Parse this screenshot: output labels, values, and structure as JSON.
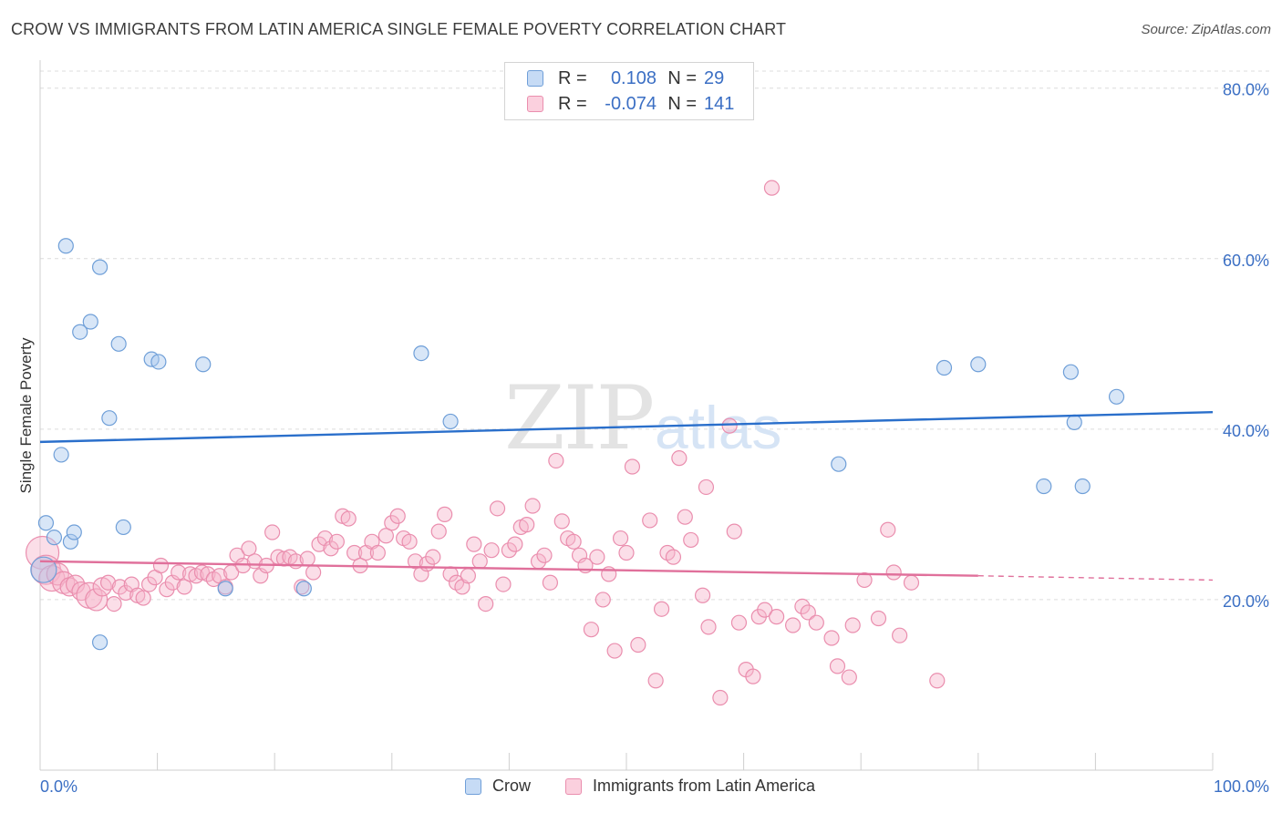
{
  "title": "CROW VS IMMIGRANTS FROM LATIN AMERICA SINGLE FEMALE POVERTY CORRELATION CHART",
  "source": "Source: ZipAtlas.com",
  "watermark": {
    "zip": "ZIP",
    "atlas": "atlas"
  },
  "legend": {
    "rows": [
      {
        "r_label": "R =",
        "r_value": "0.108",
        "n_label": "N =",
        "n_value": "29"
      },
      {
        "r_label": "R =",
        "r_value": "-0.074",
        "n_label": "N =",
        "n_value": "141"
      }
    ]
  },
  "bottom_legend": {
    "crow": "Crow",
    "immigrants": "Immigrants from Latin America"
  },
  "colors": {
    "crow_fill": "#a9c8ee",
    "crow_stroke": "#6f9fd8",
    "crow_line": "#2a6fcb",
    "imm_fill": "#f6b6cb",
    "imm_stroke": "#ea8eae",
    "imm_line": "#e0709b",
    "grid": "#dcdcdc",
    "axis_text": "#3b6fc4"
  },
  "chart_data": {
    "type": "scatter",
    "title": "CROW VS IMMIGRANTS FROM LATIN AMERICA SINGLE FEMALE POVERTY CORRELATION CHART",
    "xlabel": "",
    "ylabel": "Single Female Poverty",
    "xlim": [
      0,
      100
    ],
    "ylim": [
      0,
      82
    ],
    "x_tick_labels": [
      "0.0%",
      "100.0%"
    ],
    "y_ticks": [
      20,
      40,
      60,
      80
    ],
    "y_tick_labels": [
      "20.0%",
      "40.0%",
      "60.0%",
      "80.0%"
    ],
    "grid": true,
    "legend_position": "top-center",
    "series": [
      {
        "name": "Crow",
        "r": 0.108,
        "n": 29,
        "trend": {
          "x": [
            0,
            100
          ],
          "y": [
            38.5,
            42.0
          ],
          "dashed_from": null
        },
        "points": [
          [
            0.3,
            23.5,
            14
          ],
          [
            0.5,
            29.0,
            8
          ],
          [
            1.2,
            27.3,
            8
          ],
          [
            1.8,
            37.0,
            8
          ],
          [
            2.2,
            61.5,
            8
          ],
          [
            2.6,
            26.8,
            8
          ],
          [
            2.9,
            27.9,
            8
          ],
          [
            3.4,
            51.4,
            8
          ],
          [
            4.3,
            52.6,
            8
          ],
          [
            5.1,
            59.0,
            8
          ],
          [
            5.1,
            15.0,
            8
          ],
          [
            5.9,
            41.3,
            8
          ],
          [
            6.7,
            50.0,
            8
          ],
          [
            7.1,
            28.5,
            8
          ],
          [
            9.5,
            48.2,
            8
          ],
          [
            10.1,
            47.9,
            8
          ],
          [
            13.9,
            47.6,
            8
          ],
          [
            15.8,
            21.3,
            8
          ],
          [
            22.5,
            21.3,
            8
          ],
          [
            32.5,
            48.9,
            8
          ],
          [
            35.0,
            40.9,
            8
          ],
          [
            68.1,
            35.9,
            8
          ],
          [
            77.1,
            47.2,
            8
          ],
          [
            80.0,
            47.6,
            8
          ],
          [
            85.6,
            33.3,
            8
          ],
          [
            88.2,
            40.8,
            8
          ],
          [
            88.9,
            33.3,
            8
          ],
          [
            87.9,
            46.7,
            8
          ],
          [
            91.8,
            43.8,
            8
          ]
        ]
      },
      {
        "name": "Immigrants from Latin America",
        "r": -0.074,
        "n": 141,
        "trend": {
          "x": [
            0,
            80,
            100
          ],
          "y": [
            24.5,
            22.8,
            22.3
          ],
          "dashed_from": 80
        },
        "points": [
          [
            0.2,
            25.5,
            18
          ],
          [
            0.5,
            23.5,
            16
          ],
          [
            1.0,
            22.5,
            14
          ],
          [
            1.5,
            23.0,
            12
          ],
          [
            2.0,
            22.0,
            12
          ],
          [
            2.5,
            21.5,
            10
          ],
          [
            3.0,
            21.8,
            10
          ],
          [
            3.5,
            21.0,
            10
          ],
          [
            4.2,
            20.5,
            14
          ],
          [
            4.8,
            20.0,
            12
          ],
          [
            5.3,
            21.5,
            10
          ],
          [
            5.8,
            22.0,
            8
          ],
          [
            6.3,
            19.5,
            8
          ],
          [
            6.8,
            21.5,
            8
          ],
          [
            7.3,
            20.8,
            8
          ],
          [
            7.8,
            21.8,
            8
          ],
          [
            8.3,
            20.5,
            8
          ],
          [
            8.8,
            20.2,
            8
          ],
          [
            9.3,
            21.8,
            8
          ],
          [
            9.8,
            22.6,
            8
          ],
          [
            10.3,
            24.0,
            8
          ],
          [
            10.8,
            21.2,
            8
          ],
          [
            11.3,
            22.0,
            8
          ],
          [
            11.8,
            23.2,
            8
          ],
          [
            12.3,
            21.5,
            8
          ],
          [
            12.8,
            23.0,
            8
          ],
          [
            13.3,
            22.8,
            8
          ],
          [
            13.8,
            23.2,
            8
          ],
          [
            14.3,
            23.0,
            8
          ],
          [
            14.8,
            22.4,
            8
          ],
          [
            15.3,
            22.8,
            8
          ],
          [
            15.8,
            21.5,
            8
          ],
          [
            16.3,
            23.2,
            8
          ],
          [
            16.8,
            25.2,
            8
          ],
          [
            17.3,
            24.0,
            8
          ],
          [
            17.8,
            26.0,
            8
          ],
          [
            18.3,
            24.5,
            8
          ],
          [
            18.8,
            22.8,
            8
          ],
          [
            19.3,
            24.0,
            8
          ],
          [
            19.8,
            27.9,
            8
          ],
          [
            20.3,
            25.0,
            8
          ],
          [
            20.8,
            24.8,
            8
          ],
          [
            21.3,
            25.0,
            8
          ],
          [
            21.8,
            24.5,
            8
          ],
          [
            22.3,
            21.5,
            8
          ],
          [
            22.8,
            24.8,
            8
          ],
          [
            23.3,
            23.2,
            8
          ],
          [
            23.8,
            26.5,
            8
          ],
          [
            24.3,
            27.2,
            8
          ],
          [
            24.8,
            26.0,
            8
          ],
          [
            25.3,
            26.8,
            8
          ],
          [
            25.8,
            29.8,
            8
          ],
          [
            26.3,
            29.5,
            8
          ],
          [
            26.8,
            25.5,
            8
          ],
          [
            27.3,
            24.0,
            8
          ],
          [
            27.8,
            25.5,
            8
          ],
          [
            28.3,
            26.8,
            8
          ],
          [
            28.8,
            25.5,
            8
          ],
          [
            29.5,
            27.5,
            8
          ],
          [
            30.0,
            29.0,
            8
          ],
          [
            30.5,
            29.8,
            8
          ],
          [
            31.0,
            27.2,
            8
          ],
          [
            31.5,
            26.8,
            8
          ],
          [
            32.0,
            24.5,
            8
          ],
          [
            32.5,
            23.0,
            8
          ],
          [
            33.0,
            24.2,
            8
          ],
          [
            33.5,
            25.0,
            8
          ],
          [
            34.0,
            28.0,
            8
          ],
          [
            34.5,
            30.0,
            8
          ],
          [
            35.0,
            23.0,
            8
          ],
          [
            35.5,
            22.0,
            8
          ],
          [
            36.0,
            21.5,
            8
          ],
          [
            36.5,
            22.8,
            8
          ],
          [
            37.0,
            26.5,
            8
          ],
          [
            37.5,
            24.5,
            8
          ],
          [
            38.0,
            19.5,
            8
          ],
          [
            38.5,
            25.8,
            8
          ],
          [
            39.0,
            30.7,
            8
          ],
          [
            39.5,
            21.8,
            8
          ],
          [
            40.0,
            25.8,
            8
          ],
          [
            40.5,
            26.5,
            8
          ],
          [
            41.0,
            28.5,
            8
          ],
          [
            41.5,
            28.8,
            8
          ],
          [
            42.0,
            31.0,
            8
          ],
          [
            42.5,
            24.5,
            8
          ],
          [
            43.0,
            25.2,
            8
          ],
          [
            43.5,
            22.0,
            8
          ],
          [
            44.0,
            36.3,
            8
          ],
          [
            44.5,
            29.2,
            8
          ],
          [
            45.0,
            27.2,
            8
          ],
          [
            45.5,
            26.8,
            8
          ],
          [
            46.0,
            25.2,
            8
          ],
          [
            46.5,
            24.0,
            8
          ],
          [
            47.0,
            16.5,
            8
          ],
          [
            47.5,
            25.0,
            8
          ],
          [
            48.0,
            20.0,
            8
          ],
          [
            48.5,
            23.0,
            8
          ],
          [
            49.0,
            14.0,
            8
          ],
          [
            49.5,
            27.2,
            8
          ],
          [
            50.0,
            25.5,
            8
          ],
          [
            50.5,
            35.6,
            8
          ],
          [
            51.0,
            14.7,
            8
          ],
          [
            52.0,
            29.3,
            8
          ],
          [
            52.5,
            10.5,
            8
          ],
          [
            53.0,
            18.9,
            8
          ],
          [
            53.5,
            25.5,
            8
          ],
          [
            54.0,
            25.0,
            8
          ],
          [
            54.5,
            36.6,
            8
          ],
          [
            55.0,
            29.7,
            8
          ],
          [
            55.5,
            27.0,
            8
          ],
          [
            56.5,
            20.5,
            8
          ],
          [
            56.8,
            33.2,
            8
          ],
          [
            57.0,
            16.8,
            8
          ],
          [
            58.0,
            8.5,
            8
          ],
          [
            58.8,
            40.4,
            8
          ],
          [
            59.2,
            28.0,
            8
          ],
          [
            59.6,
            17.3,
            8
          ],
          [
            60.2,
            11.8,
            8
          ],
          [
            60.8,
            11.0,
            8
          ],
          [
            61.3,
            18.0,
            8
          ],
          [
            61.8,
            18.8,
            8
          ],
          [
            62.4,
            68.3,
            8
          ],
          [
            62.8,
            18.0,
            8
          ],
          [
            64.2,
            17.0,
            8
          ],
          [
            65.0,
            19.2,
            8
          ],
          [
            65.5,
            18.5,
            8
          ],
          [
            66.2,
            17.3,
            8
          ],
          [
            67.5,
            15.5,
            8
          ],
          [
            68.0,
            12.2,
            8
          ],
          [
            69.0,
            10.9,
            8
          ],
          [
            69.3,
            17.0,
            8
          ],
          [
            70.3,
            22.3,
            8
          ],
          [
            71.5,
            17.8,
            8
          ],
          [
            72.3,
            28.2,
            8
          ],
          [
            72.8,
            23.2,
            8
          ],
          [
            73.3,
            15.8,
            8
          ],
          [
            74.3,
            22.0,
            8
          ],
          [
            76.5,
            10.5,
            8
          ]
        ]
      }
    ]
  }
}
